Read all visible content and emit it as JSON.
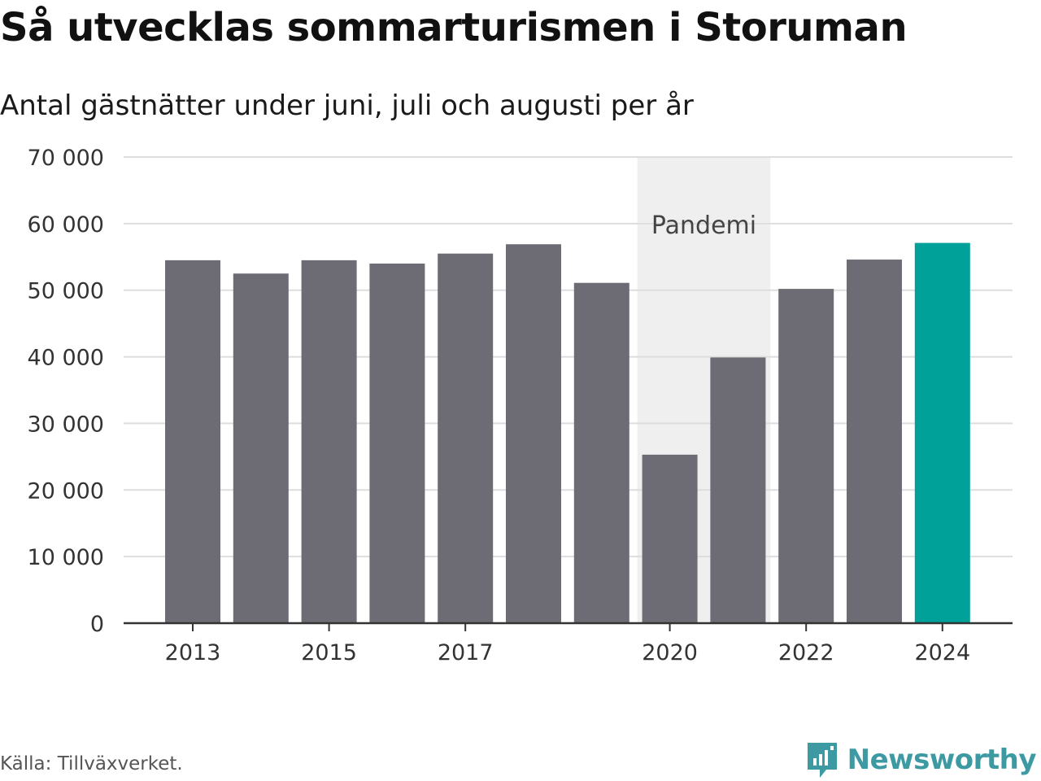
{
  "title": "Så utvecklas sommarturismen i Storuman",
  "subtitle": "Antal gästnätter under juni, juli och augusti per år",
  "source": "Källa: Tillväxverket.",
  "brand": {
    "name": "Newsworthy",
    "icon": "newsworthy-logo-icon"
  },
  "colors": {
    "bar": "#6d6c74",
    "highlight": "#00a198",
    "band": "#efefef",
    "grid": "#dddddd",
    "axis": "#333333"
  },
  "chart_data": {
    "type": "bar",
    "title": "Så utvecklas sommarturismen i Storuman",
    "xlabel": "",
    "ylabel": "",
    "categories": [
      "2013",
      "2014",
      "2015",
      "2016",
      "2017",
      "2018",
      "2019",
      "2020",
      "2021",
      "2022",
      "2023",
      "2024"
    ],
    "values": [
      54500,
      52500,
      54500,
      54000,
      55500,
      56900,
      51100,
      25300,
      39900,
      50200,
      54600,
      57100
    ],
    "highlight": "2024",
    "ylim": [
      0,
      70000
    ],
    "yticks": [
      0,
      10000,
      20000,
      30000,
      40000,
      50000,
      60000,
      70000
    ],
    "ytick_labels": [
      "0",
      "10 000",
      "20 000",
      "30 000",
      "40 000",
      "50 000",
      "60 000",
      "70 000"
    ],
    "xticks": [
      "2013",
      "2015",
      "2017",
      "2020",
      "2022",
      "2024"
    ],
    "grid": true,
    "annotation": {
      "label": "Pandemi",
      "from": "2020",
      "to": "2021"
    }
  }
}
